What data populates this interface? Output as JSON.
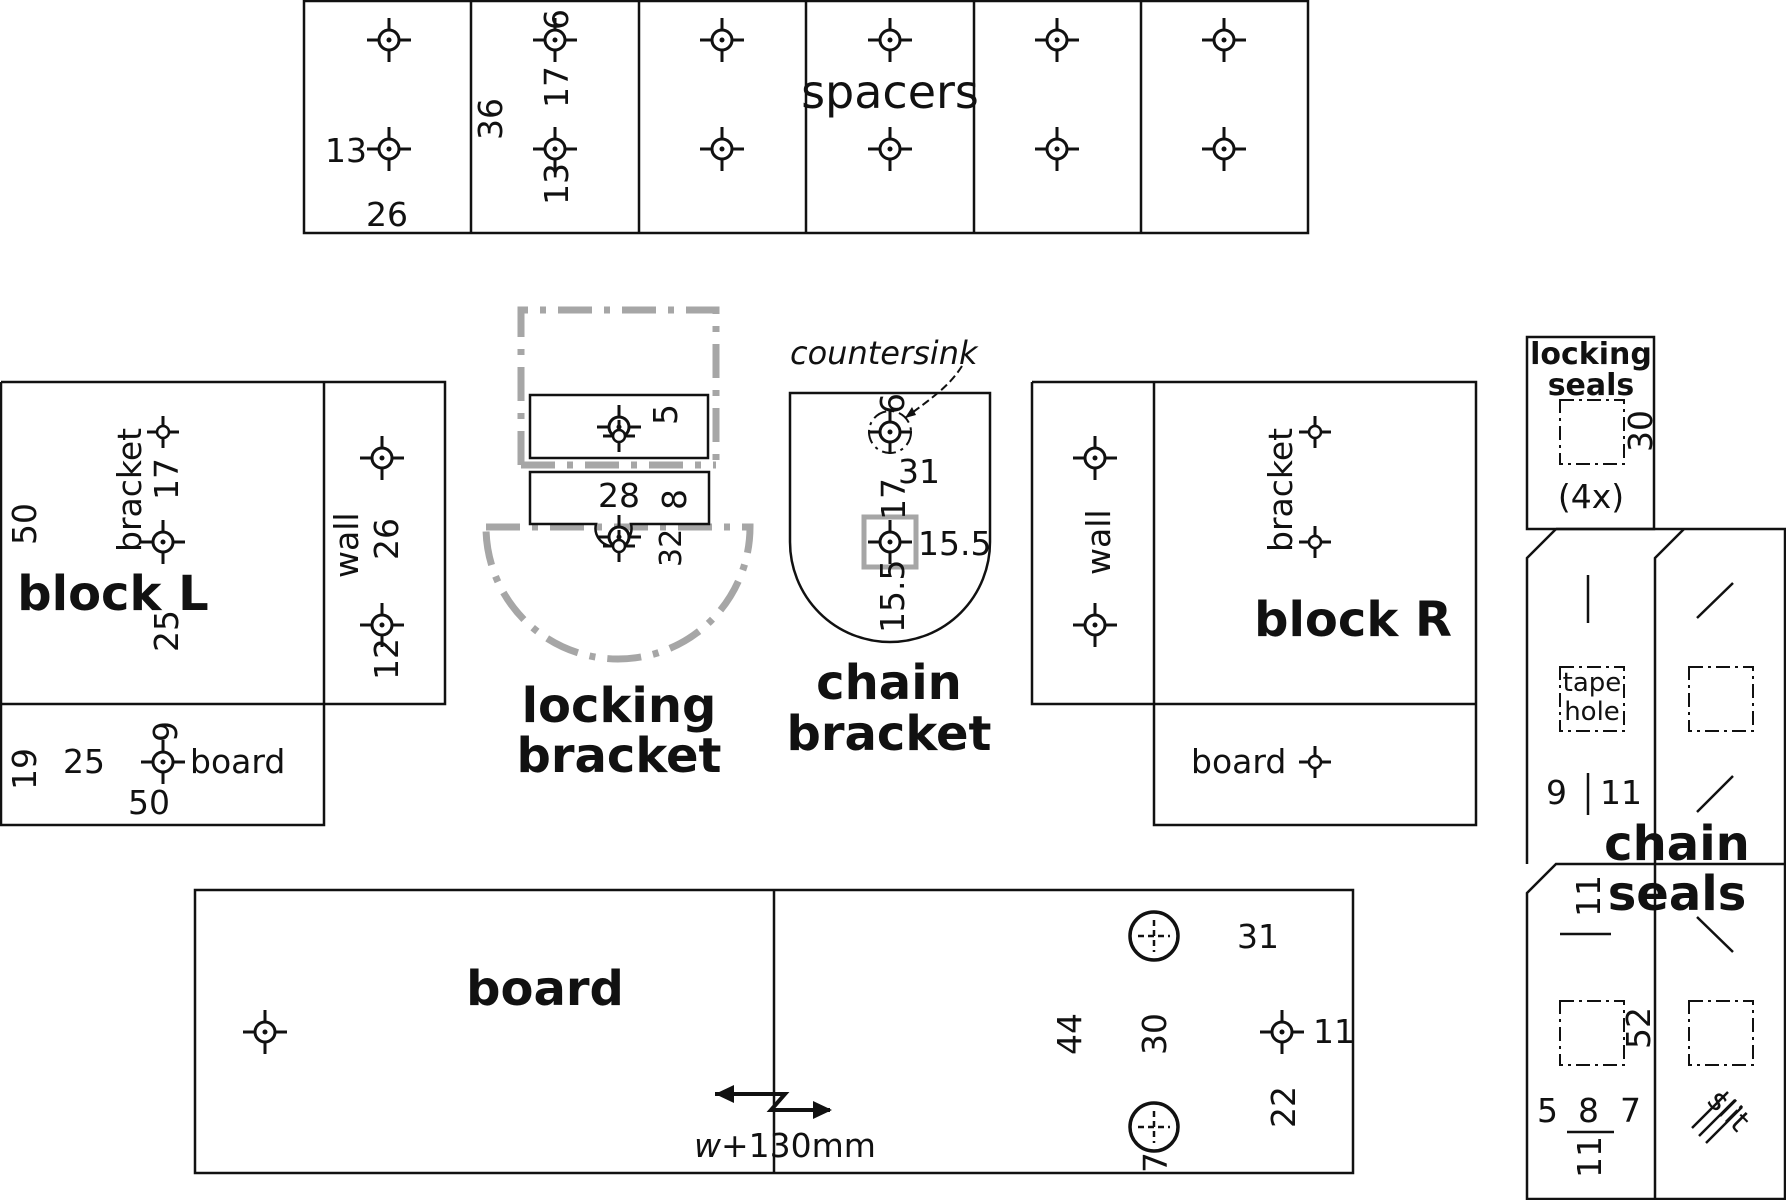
{
  "colors": {
    "ink": "#111111",
    "guide": "#a6a6a6",
    "background": "#ffffff"
  },
  "spacers": {
    "title": "spacers",
    "dims": {
      "d13": "13",
      "d26": "26",
      "d36": "36",
      "d17": "17",
      "d6": "6",
      "d13b": "13"
    }
  },
  "block_l": {
    "title": "block L",
    "bracket_label": "bracket",
    "wall_label": "wall",
    "board_label": "board",
    "dims": {
      "d50": "50",
      "d17": "17",
      "d25": "25",
      "d26": "26",
      "d12": "12",
      "d19": "19",
      "d25b": "25",
      "d9": "9",
      "d50b": "50"
    }
  },
  "locking_bracket": {
    "title_line1": "locking",
    "title_line2": "bracket",
    "dims": {
      "d5": "5",
      "d28": "28",
      "d8": "8",
      "d32": "32"
    }
  },
  "chain_bracket": {
    "title_line1": "chain",
    "title_line2": "bracket",
    "note": "countersink",
    "dims": {
      "d6": "6",
      "d31": "31",
      "d17": "17",
      "d15_5a": "15.5",
      "d15_5b": "15.5"
    }
  },
  "block_r": {
    "title": "block R",
    "wall_label": "wall",
    "bracket_label": "bracket",
    "board_label": "board"
  },
  "locking_seals": {
    "title_line1": "locking",
    "title_line2": "seals",
    "count": "(4x)",
    "dims": {
      "d30": "30"
    }
  },
  "chain_seals": {
    "title_line1": "chain",
    "title_line2": "seals",
    "tape_line1": "tape",
    "tape_line2": "hole",
    "slit": "slit",
    "dims": {
      "d9": "9",
      "d11a": "11",
      "d11b": "11",
      "d52": "52",
      "d5": "5",
      "d8": "8",
      "d7": "7",
      "d11c": "11"
    }
  },
  "board": {
    "title": "board",
    "width_note_var": "w",
    "width_note_rest": "+130mm",
    "dims": {
      "d31": "31",
      "d44": "44",
      "d30": "30",
      "d11": "11",
      "d22": "22",
      "d7": "7"
    }
  }
}
